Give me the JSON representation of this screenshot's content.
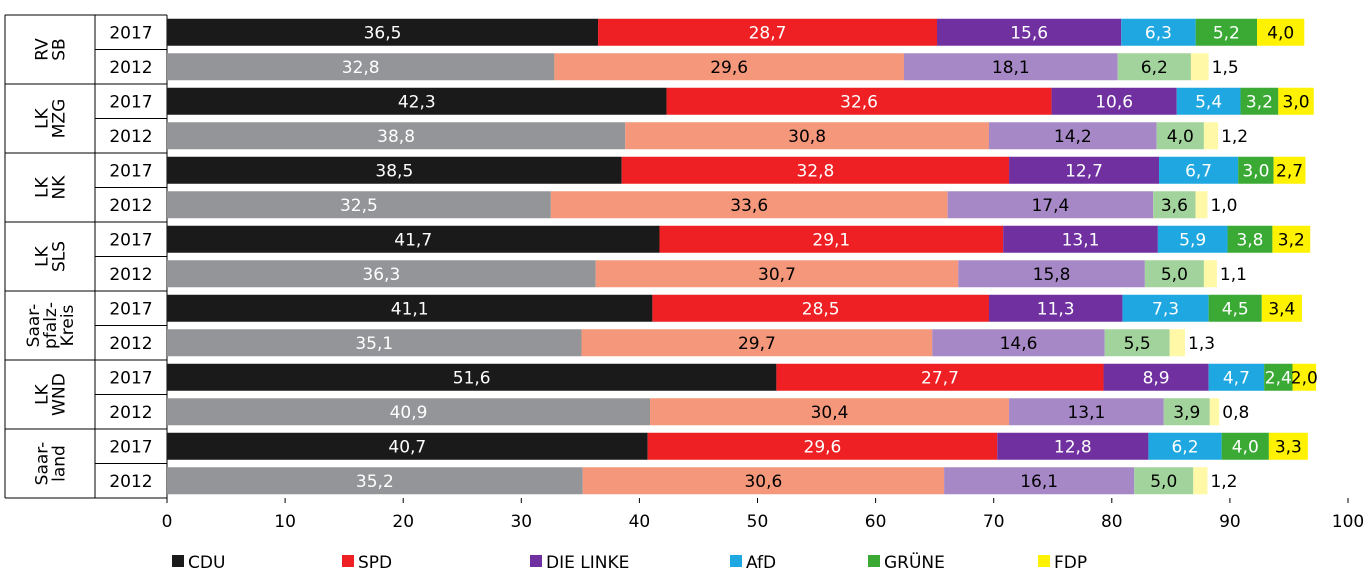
{
  "chart_data": {
    "type": "bar",
    "orientation": "horizontal",
    "stacked": true,
    "xlim": [
      0,
      100
    ],
    "x_ticks": [
      "0",
      "10",
      "20",
      "30",
      "40",
      "50",
      "60",
      "70",
      "80",
      "90",
      "100"
    ],
    "grid": false,
    "legend_position": "bottom",
    "colors_2017": [
      "#1a1a1a",
      "#ee2024",
      "#7030a0",
      "#1ea7e1",
      "#3aaa35",
      "#fff200"
    ],
    "colors_2012": [
      "#939598",
      "#f4977a",
      "#a788c6",
      "#8ed1f2",
      "#a3d39c",
      "#fff8a6"
    ],
    "series": [
      {
        "name": "CDU",
        "color": "#1a1a1a"
      },
      {
        "name": "SPD",
        "color": "#ee2024"
      },
      {
        "name": "DIE LINKE",
        "color": "#7030a0"
      },
      {
        "name": "AfD",
        "color": "#1ea7e1"
      },
      {
        "name": "GRÜNE",
        "color": "#3aaa35"
      },
      {
        "name": "FDP",
        "color": "#fff200"
      }
    ],
    "groups": [
      {
        "label": [
          "RV",
          "SB"
        ],
        "rows": [
          {
            "year": "2017",
            "values": [
              36.5,
              28.7,
              15.6,
              6.3,
              5.2,
              4.0
            ],
            "labels": [
              "36,5",
              "28,7",
              "15,6",
              "6,3",
              "5,2",
              "4,0"
            ]
          },
          {
            "year": "2012",
            "values": [
              32.8,
              29.6,
              18.1,
              null,
              6.2,
              1.5
            ],
            "labels": [
              "32,8",
              "29,6",
              "18,1",
              "",
              "6,2",
              "1,5"
            ]
          }
        ]
      },
      {
        "label": [
          "LK",
          "MZG"
        ],
        "rows": [
          {
            "year": "2017",
            "values": [
              42.3,
              32.6,
              10.6,
              5.4,
              3.2,
              3.0
            ],
            "labels": [
              "42,3",
              "32,6",
              "10,6",
              "5,4",
              "3,2",
              "3,0"
            ]
          },
          {
            "year": "2012",
            "values": [
              38.8,
              30.8,
              14.2,
              null,
              4.0,
              1.2
            ],
            "labels": [
              "38,8",
              "30,8",
              "14,2",
              "",
              "4,0",
              "1,2"
            ]
          }
        ]
      },
      {
        "label": [
          "LK",
          "NK"
        ],
        "rows": [
          {
            "year": "2017",
            "values": [
              38.5,
              32.8,
              12.7,
              6.7,
              3.0,
              2.7
            ],
            "labels": [
              "38,5",
              "32,8",
              "12,7",
              "6,7",
              "3,0",
              "2,7"
            ]
          },
          {
            "year": "2012",
            "values": [
              32.5,
              33.6,
              17.4,
              null,
              3.6,
              1.0
            ],
            "labels": [
              "32,5",
              "33,6",
              "17,4",
              "",
              "3,6",
              "1,0"
            ]
          }
        ]
      },
      {
        "label": [
          "LK",
          "SLS"
        ],
        "rows": [
          {
            "year": "2017",
            "values": [
              41.7,
              29.1,
              13.1,
              5.9,
              3.8,
              3.2
            ],
            "labels": [
              "41,7",
              "29,1",
              "13,1",
              "5,9",
              "3,8",
              "3,2"
            ]
          },
          {
            "year": "2012",
            "values": [
              36.3,
              30.7,
              15.8,
              null,
              5.0,
              1.1
            ],
            "labels": [
              "36,3",
              "30,7",
              "15,8",
              "",
              "5,0",
              "1,1"
            ]
          }
        ]
      },
      {
        "label": [
          "Saar-",
          "pfalz-",
          "Kreis"
        ],
        "rows": [
          {
            "year": "2017",
            "values": [
              41.1,
              28.5,
              11.3,
              7.3,
              4.5,
              3.4
            ],
            "labels": [
              "41,1",
              "28,5",
              "11,3",
              "7,3",
              "4,5",
              "3,4"
            ]
          },
          {
            "year": "2012",
            "values": [
              35.1,
              29.7,
              14.6,
              null,
              5.5,
              1.3
            ],
            "labels": [
              "35,1",
              "29,7",
              "14,6",
              "",
              "5,5",
              "1,3"
            ]
          }
        ]
      },
      {
        "label": [
          "LK",
          "WND"
        ],
        "rows": [
          {
            "year": "2017",
            "values": [
              51.6,
              27.7,
              8.9,
              4.7,
              2.4,
              2.0
            ],
            "labels": [
              "51,6",
              "27,7",
              "8,9",
              "4,7",
              "2,4",
              "2,0"
            ]
          },
          {
            "year": "2012",
            "values": [
              40.9,
              30.4,
              13.1,
              null,
              3.9,
              0.8
            ],
            "labels": [
              "40,9",
              "30,4",
              "13,1",
              "",
              "3,9",
              "0,8"
            ]
          }
        ]
      },
      {
        "label": [
          "Saar-",
          "land"
        ],
        "rows": [
          {
            "year": "2017",
            "values": [
              40.7,
              29.6,
              12.8,
              6.2,
              4.0,
              3.3
            ],
            "labels": [
              "40,7",
              "29,6",
              "12,8",
              "6,2",
              "4,0",
              "3,3"
            ]
          },
          {
            "year": "2012",
            "values": [
              35.2,
              30.6,
              16.1,
              null,
              5.0,
              1.2
            ],
            "labels": [
              "35,2",
              "30,6",
              "16,1",
              "",
              "5,0",
              "1,2"
            ]
          }
        ]
      }
    ]
  }
}
